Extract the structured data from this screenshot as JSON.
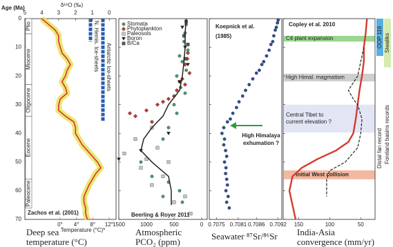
{
  "chart_data": [
    {
      "type": "line",
      "y_label": "Age (Ma)",
      "ylim": [
        70,
        0
      ],
      "yticks": [
        0,
        10,
        20,
        30,
        40,
        50,
        60,
        70
      ],
      "x_label": "δ¹⁸O (‰)",
      "xaxis_position": "top",
      "xlim": [
        5,
        -0.4
      ],
      "xticks": [
        5,
        4,
        3,
        2,
        1,
        0
      ],
      "x2lim": [
        -8.6,
        13.7
      ],
      "x2ticks": [
        {
          "value": 0,
          "label": "0°"
        },
        {
          "value": 4,
          "label": "4°"
        },
        {
          "value": 8,
          "label": "8°"
        },
        {
          "value": 12,
          "label": "12°"
        }
      ],
      "x2_label": "Temperature (°C)*",
      "x2_color": "#d9302c",
      "source": "Zachos et al. (2001)",
      "title_lines": [
        "Deep sea",
        "temperature (°C)"
      ],
      "epochs": [
        {
          "label": "Plio",
          "start": 0,
          "end": 5.3
        },
        {
          "label": "Miocene",
          "start": 5.3,
          "end": 23
        },
        {
          "label": "Oligocene",
          "start": 23,
          "end": 34
        },
        {
          "label": "Eocene",
          "start": 34,
          "end": 56
        },
        {
          "label": "Paleocene",
          "start": 56,
          "end": 66
        }
      ],
      "ice_sheets": [
        {
          "label": "N. Hemis. Ice-sheets",
          "start": 0,
          "end": 8,
          "color": "#2a5db0"
        },
        {
          "label": "Antarctic Ice-sheets",
          "start": 0,
          "end": 36,
          "color": "#2a5db0"
        }
      ],
      "series": [
        {
          "color": "#d9302c",
          "band_color": "#e6e35c",
          "x": [
            4.0,
            3.6,
            3.2,
            3.0,
            3.0,
            2.9,
            2.8,
            2.5,
            2.3,
            2.5,
            2.6,
            2.8,
            2.6,
            2.5,
            2.9,
            3.0,
            3.0,
            2.6,
            2.1,
            2.0,
            2.0,
            1.8,
            1.6,
            1.3,
            1.0,
            0.7,
            0.5,
            0.8,
            1.0,
            1.2,
            1.35,
            1.5,
            1.5,
            1.4,
            1.4,
            1.3
          ],
          "values": [
            0,
            2,
            4,
            6,
            8,
            10,
            12,
            14,
            16,
            18,
            20,
            22,
            24,
            26,
            28,
            30,
            32,
            34,
            36,
            38,
            40,
            42,
            44,
            46,
            48,
            50,
            52,
            54,
            56,
            58,
            60,
            62,
            64,
            66,
            68,
            70
          ]
        }
      ]
    },
    {
      "type": "scatter",
      "xlim": [
        1500,
        -100
      ],
      "xticks": [
        1500,
        1000,
        500,
        0
      ],
      "source": "Beerling & Royer 2011",
      "title_lines": [
        "Atmospheric",
        "PCO₂ (ppm)"
      ],
      "series": [
        {
          "name": "Stomata",
          "color": "#4d9a6a",
          "marker": "circle",
          "x": [
            280,
            300,
            320,
            250,
            400,
            350,
            280,
            450,
            380,
            300,
            500,
            450,
            600,
            700,
            1100,
            900,
            600,
            400,
            350,
            700
          ],
          "values": [
            2,
            5,
            8,
            11,
            13,
            15,
            18,
            20,
            24,
            26,
            30,
            33,
            38,
            42,
            50,
            55,
            57,
            60,
            64,
            62
          ]
        },
        {
          "name": "Phytoplankton",
          "color": "#c0392b",
          "marker": "diamond",
          "x": [
            260,
            300,
            220,
            350,
            300,
            450,
            500,
            600,
            800,
            1000,
            1200,
            900,
            700,
            400,
            250,
            1300
          ],
          "values": [
            14,
            16,
            19,
            21,
            23,
            25,
            27,
            28,
            30,
            32,
            34,
            36,
            29,
            22,
            12,
            33
          ]
        },
        {
          "name": "Paleosols",
          "color": "#c8c8c8",
          "marker": "square",
          "x": [
            900,
            1200,
            800,
            1400,
            1100,
            700,
            300,
            500,
            1000,
            200,
            600,
            900
          ],
          "values": [
            38,
            42,
            45,
            47,
            52,
            55,
            62,
            64,
            49,
            68,
            50,
            58
          ]
        },
        {
          "name": "Boron",
          "color": "#222222",
          "marker": "triangle",
          "x": [
            350,
            300,
            250,
            400,
            1100,
            1500,
            600
          ],
          "values": [
            3,
            10,
            16,
            22,
            46,
            49,
            40
          ]
        },
        {
          "name": "B/Ca",
          "color": "#555555",
          "marker": "square",
          "x": [
            280,
            320,
            250,
            300
          ],
          "values": [
            1,
            6,
            9,
            14
          ]
        }
      ],
      "trend": {
        "color": "#222222",
        "x": [
          280,
          300,
          300,
          320,
          350,
          400,
          600,
          700,
          900,
          1050,
          1100,
          900,
          600,
          550,
          550
        ],
        "values": [
          0,
          5,
          10,
          15,
          20,
          25,
          30,
          34,
          38,
          42,
          46,
          50,
          55,
          60,
          65
        ]
      }
    },
    {
      "type": "scatter",
      "xlim": [
        0.7073,
        0.7093
      ],
      "xticks": [
        0.7075,
        0.7081,
        0.7086,
        0.7092
      ],
      "source_lines": [
        "Koepnick et al.",
        "(1985)"
      ],
      "title_lines": [
        "Seawater ⁸⁷Sr/⁸⁶Sr"
      ],
      "annotation": {
        "lines": [
          "High Himalaya",
          "exhumation ?"
        ],
        "color": "#2e9b3a"
      },
      "series": [
        {
          "color": "#2a4f9a",
          "marker": "circle",
          "x": [
            0.7092,
            0.70918,
            0.70915,
            0.70912,
            0.70908,
            0.70905,
            0.709,
            0.70895,
            0.70888,
            0.7088,
            0.70875,
            0.70868,
            0.7086,
            0.7085,
            0.7084,
            0.7083,
            0.70822,
            0.70812,
            0.70805,
            0.70795,
            0.70788,
            0.7078,
            0.7077,
            0.70765,
            0.70772,
            0.7077,
            0.70775,
            0.70778,
            0.70772,
            0.70776,
            0.70775,
            0.70778,
            0.7078,
            0.70776,
            0.70782,
            0.70778,
            0.70785
          ],
          "values": [
            0.5,
            1.5,
            3,
            4,
            6,
            8,
            9,
            11,
            13,
            15,
            16,
            18,
            19,
            21,
            23,
            25,
            27,
            29,
            31,
            33,
            35,
            36,
            38,
            40,
            42,
            44,
            46,
            48,
            50,
            52,
            54,
            56,
            58,
            60,
            62,
            64,
            66
          ]
        }
      ]
    },
    {
      "type": "line",
      "xlim": [
        175,
        27
      ],
      "xticks": [
        150,
        100,
        50
      ],
      "source": "Copley et al. 2010",
      "title_lines": [
        "India-Asia",
        "convergence (mm/yr)"
      ],
      "bands": [
        {
          "label_lines": [
            "C4 plant expansion"
          ],
          "start": 6,
          "end": 8,
          "color": "#9ad68f"
        },
        {
          "label_lines": [
            "High Himal. magmatism"
          ],
          "start": 19.2,
          "end": 21.9,
          "color": "#cfcfcf"
        },
        {
          "label_lines": [
            "Central Tibet to",
            "current elevation ?"
          ],
          "start": 30,
          "end": 39.7,
          "color": "#e1e5f4"
        },
        {
          "label_lines": [
            "Initial West collision"
          ],
          "start": 52.9,
          "end": 56,
          "color": "#f4b8a0"
        }
      ],
      "records": [
        {
          "label": "OOP 116",
          "start": 0,
          "end": 13,
          "color": "#5aaee0"
        },
        {
          "label": "Siwaliks",
          "start": 0,
          "end": 17,
          "color": "#d5ebb0"
        }
      ],
      "record_notes": [
        "Distal fan record",
        "Foreland basins records"
      ],
      "series": [
        {
          "color": "#d43a2f",
          "dash": false,
          "x": [
            40,
            42,
            45,
            45,
            48,
            52,
            55,
            58,
            62,
            70,
            90,
            120,
            145,
            160,
            165,
            160,
            155
          ],
          "values": [
            0,
            5,
            10,
            15,
            20,
            25,
            30,
            35,
            40,
            43,
            46,
            49,
            52,
            55,
            60,
            65,
            70
          ]
        },
        {
          "color": "#222222",
          "dash": true,
          "x": [
            45,
            50,
            55,
            70,
            62,
            55,
            48,
            50,
            55,
            75,
            100,
            105,
            105,
            105
          ],
          "values": [
            10,
            15,
            20,
            25,
            28,
            30,
            35,
            40,
            45,
            50,
            53,
            56,
            60,
            62
          ]
        }
      ]
    }
  ]
}
